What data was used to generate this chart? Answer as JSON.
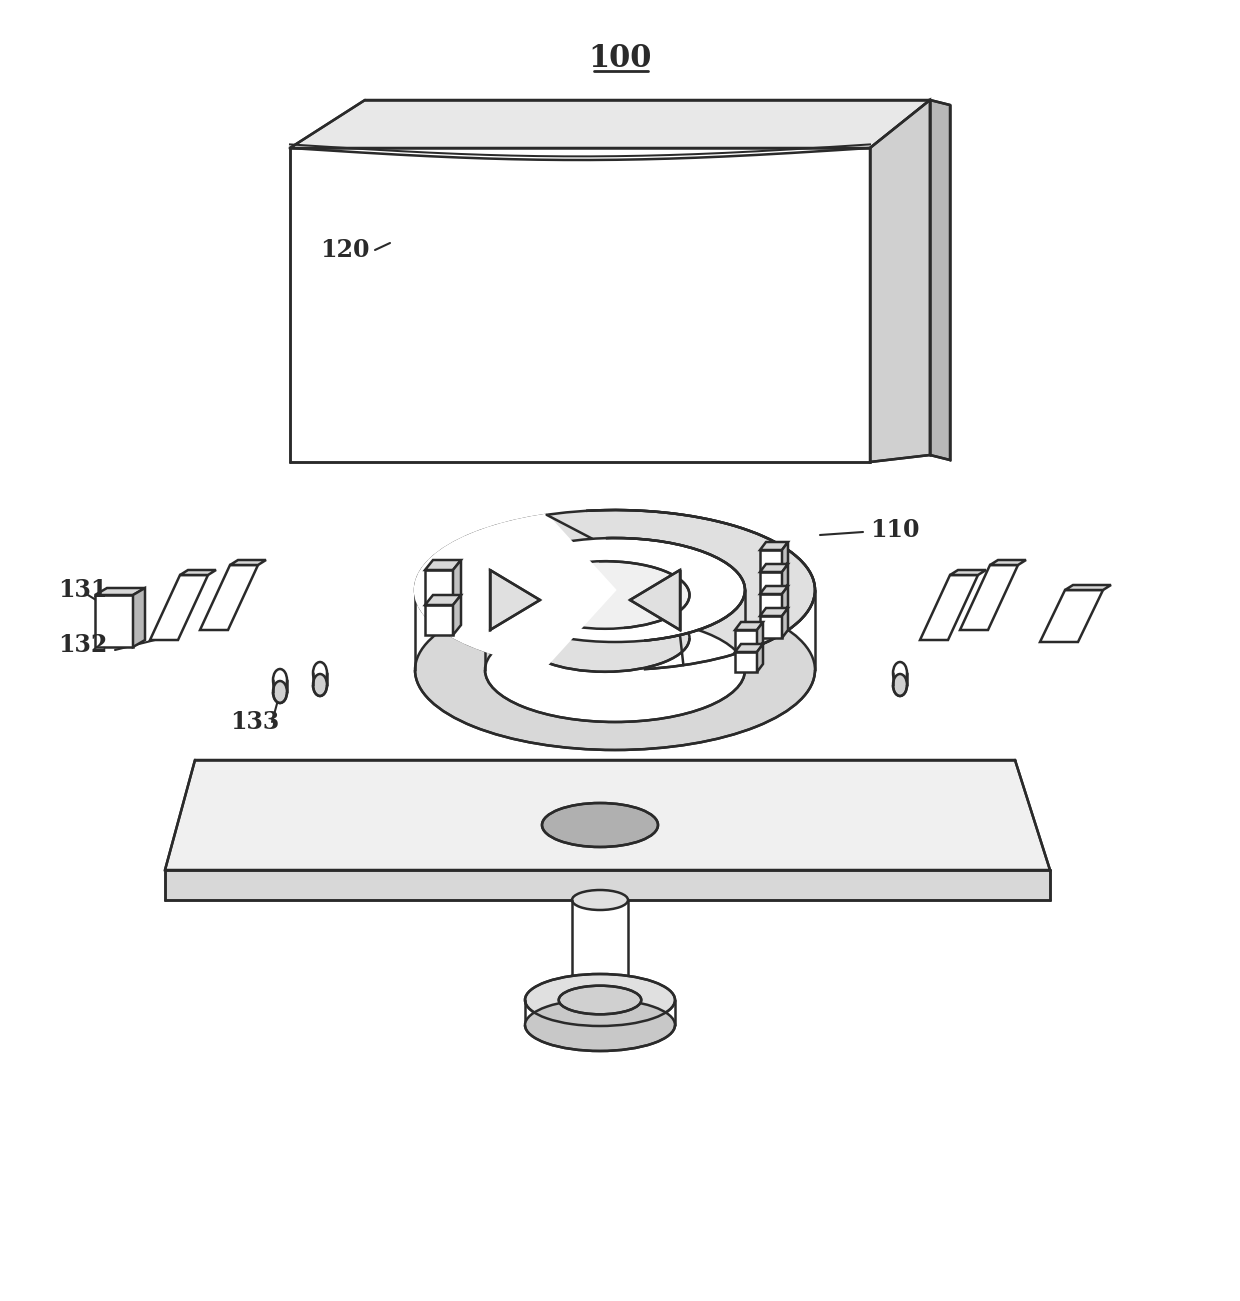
{
  "label_100": "100",
  "label_110": "110",
  "label_120": "120",
  "label_131": "131",
  "label_132": "132",
  "label_133": "133",
  "bg_color": "#ffffff",
  "line_color": "#2a2a2a",
  "line_width": 1.8,
  "figsize": [
    12.4,
    13.01
  ],
  "dpi": 100,
  "annotation_fontsize": 17,
  "title_fontsize": 22
}
